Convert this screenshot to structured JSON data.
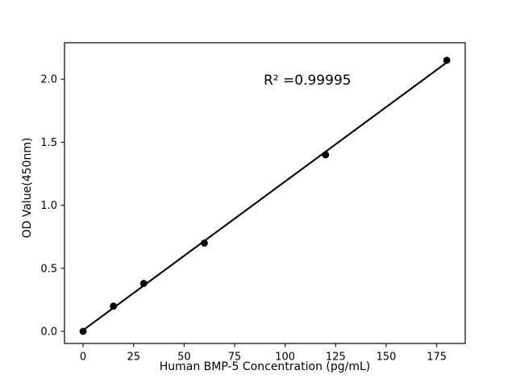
{
  "figure": {
    "background": "#ffffff"
  },
  "chart_data": {
    "type": "scatter",
    "title": "",
    "xlabel": "Human BMP-5 Concentration (pg/mL)",
    "ylabel": "OD Value(450nm)",
    "annotation": "R² =0.99995",
    "x": [
      0,
      15,
      30,
      60,
      120,
      180
    ],
    "y": [
      0.0,
      0.2,
      0.38,
      0.7,
      1.4,
      2.15
    ],
    "fit_line": {
      "x0": 0,
      "y0": 0.009,
      "x1": 180,
      "y1": 2.133
    },
    "x_ticks": [
      0,
      25,
      50,
      75,
      100,
      125,
      150,
      175
    ],
    "x_tick_labels": [
      "0",
      "25",
      "50",
      "75",
      "100",
      "125",
      "150",
      "175"
    ],
    "y_ticks": [
      0.0,
      0.5,
      1.0,
      1.5,
      2.0
    ],
    "y_tick_labels": [
      "0.0",
      "0.5",
      "1.0",
      "1.5",
      "2.0"
    ],
    "xlim": [
      -9.2,
      189.1
    ],
    "ylim": [
      -0.096,
      2.289
    ],
    "grid": false,
    "legend_position": "none",
    "colors": {
      "marker": "#000000",
      "line": "#000000",
      "text": "#000000",
      "axis": "#000000",
      "background": "#ffffff"
    }
  }
}
